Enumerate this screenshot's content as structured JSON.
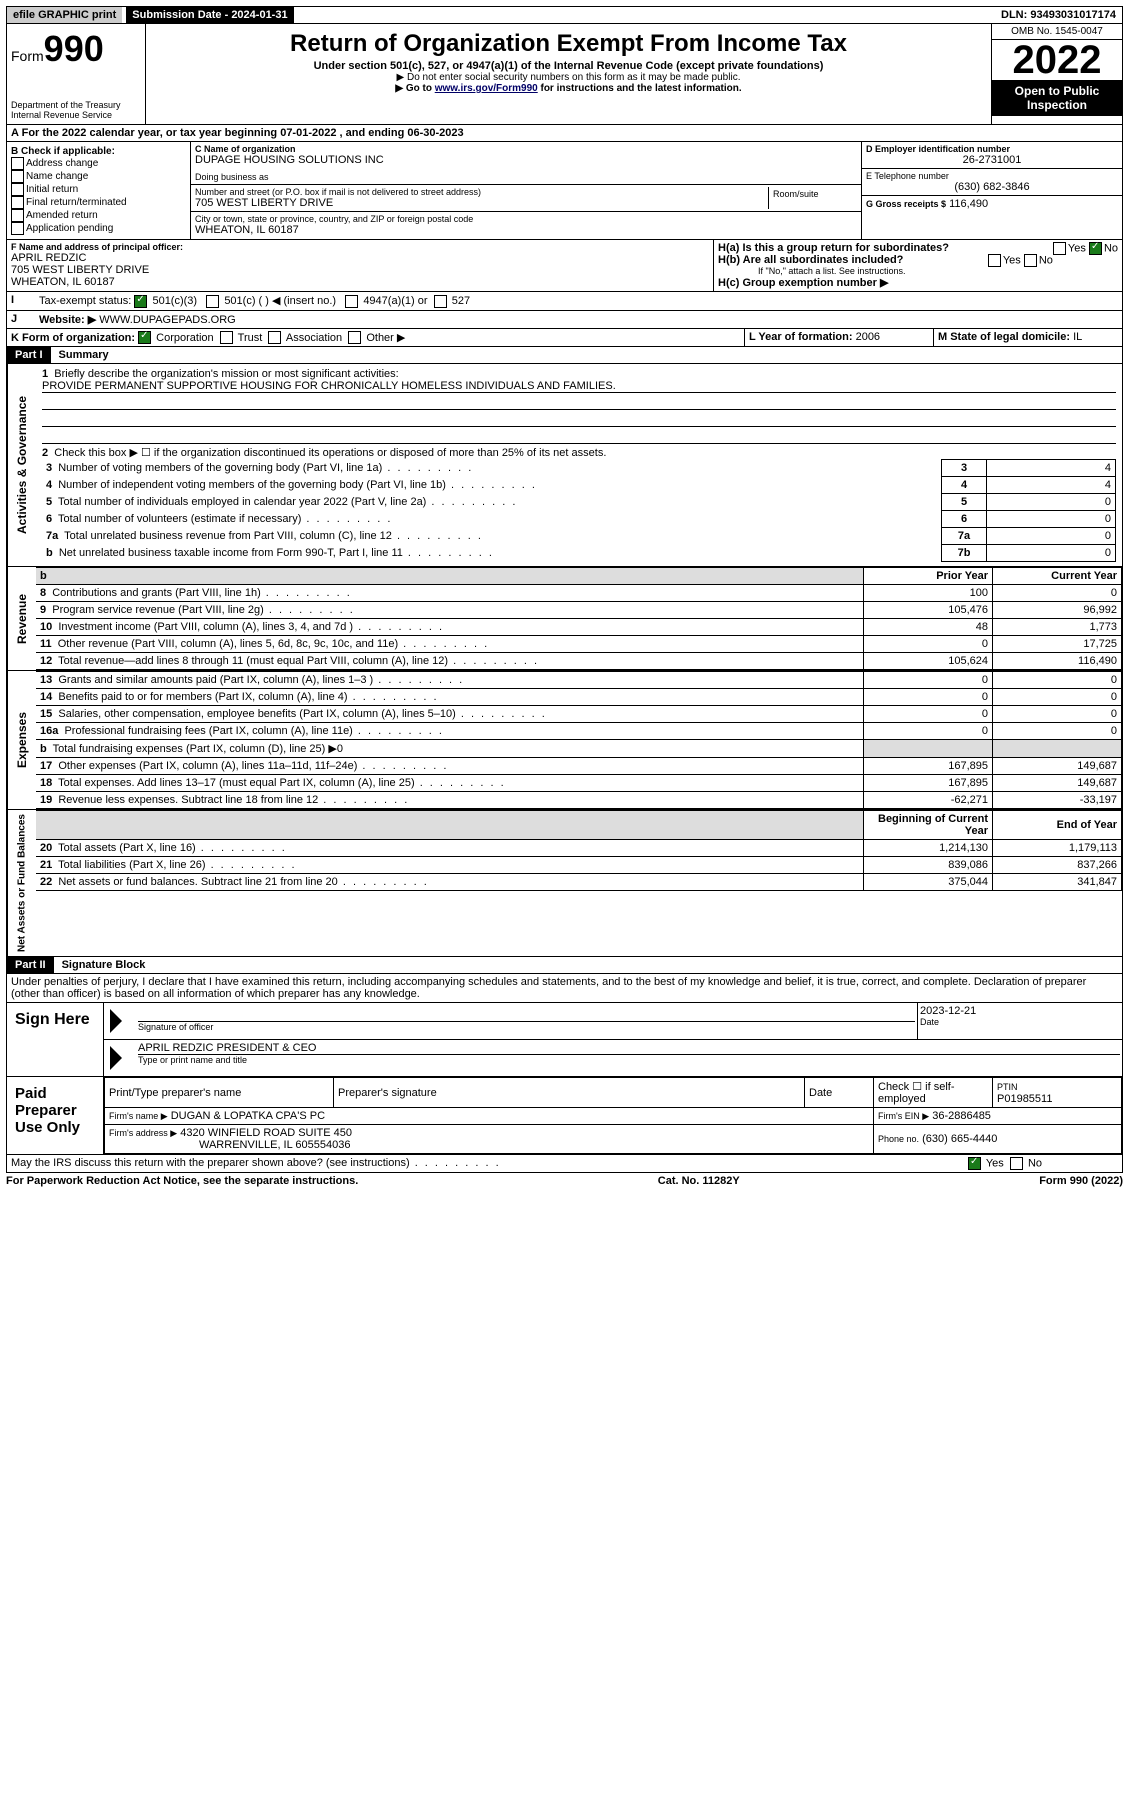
{
  "topbar": {
    "efile": "efile GRAPHIC print",
    "submission_label": "Submission Date - 2024-01-31",
    "dln_label": "DLN: 93493031017174"
  },
  "header": {
    "form_word": "Form",
    "form_num": "990",
    "dept": "Department of the Treasury",
    "irs": "Internal Revenue Service",
    "title": "Return of Organization Exempt From Income Tax",
    "sub": "Under section 501(c), 527, or 4947(a)(1) of the Internal Revenue Code (except private foundations)",
    "note1": "▶ Do not enter social security numbers on this form as it may be made public.",
    "note2_pre": "▶ Go to ",
    "note2_link": "www.irs.gov/Form990",
    "note2_post": " for instructions and the latest information.",
    "omb": "OMB No. 1545-0047",
    "year": "2022",
    "open": "Open to Public Inspection"
  },
  "lineA": "For the 2022 calendar year, or tax year beginning 07-01-2022   , and ending 06-30-2023",
  "boxB": {
    "label": "B Check if applicable:",
    "items": [
      "Address change",
      "Name change",
      "Initial return",
      "Final return/terminated",
      "Amended return",
      "Application pending"
    ]
  },
  "boxC": {
    "label": "C Name of organization",
    "name": "DUPAGE HOUSING SOLUTIONS INC",
    "dba": "Doing business as",
    "street_lbl": "Number and street (or P.O. box if mail is not delivered to street address)",
    "room_lbl": "Room/suite",
    "street": "705 WEST LIBERTY DRIVE",
    "city_lbl": "City or town, state or province, country, and ZIP or foreign postal code",
    "city": "WHEATON, IL  60187"
  },
  "boxD": {
    "label": "D Employer identification number",
    "value": "26-2731001"
  },
  "boxE": {
    "label": "E Telephone number",
    "value": "(630) 682-3846"
  },
  "boxG": {
    "label": "G Gross receipts $",
    "value": "116,490"
  },
  "boxF": {
    "label": "F  Name and address of principal officer:",
    "name": "APRIL REDZIC",
    "street": "705 WEST LIBERTY DRIVE",
    "city": "WHEATON, IL  60187"
  },
  "boxH": {
    "a": "H(a)  Is this a group return for subordinates?",
    "b": "H(b)  Are all subordinates included?",
    "b_note": "If \"No,\" attach a list. See instructions.",
    "c": "H(c)  Group exemption number ▶",
    "yes": "Yes",
    "no": "No"
  },
  "boxI": {
    "label": "Tax-exempt status:",
    "c3": "501(c)(3)",
    "c": "501(c) (  ) ◀ (insert no.)",
    "a1": "4947(a)(1) or",
    "s527": "527"
  },
  "boxJ": {
    "label": "Website: ▶",
    "value": "WWW.DUPAGEPADS.ORG"
  },
  "boxK": {
    "label": "K Form of organization:",
    "corp": "Corporation",
    "trust": "Trust",
    "assoc": "Association",
    "other": "Other ▶"
  },
  "boxL": {
    "label": "L Year of formation:",
    "value": "2006"
  },
  "boxM": {
    "label": "M State of legal domicile:",
    "value": "IL"
  },
  "part1": {
    "header": "Part I",
    "title": "Summary"
  },
  "summary": {
    "line1_lbl": "Briefly describe the organization's mission or most significant activities:",
    "line1_val": "PROVIDE PERMANENT SUPPORTIVE HOUSING FOR CHRONICALLY HOMELESS INDIVIDUALS AND FAMILIES.",
    "line2": "Check this box ▶ ☐  if the organization discontinued its operations or disposed of more than 25% of its net assets.",
    "rows_ag": [
      {
        "n": "3",
        "label": "Number of voting members of the governing body (Part VI, line 1a)",
        "box": "3",
        "val": "4"
      },
      {
        "n": "4",
        "label": "Number of independent voting members of the governing body (Part VI, line 1b)",
        "box": "4",
        "val": "4"
      },
      {
        "n": "5",
        "label": "Total number of individuals employed in calendar year 2022 (Part V, line 2a)",
        "box": "5",
        "val": "0"
      },
      {
        "n": "6",
        "label": "Total number of volunteers (estimate if necessary)",
        "box": "6",
        "val": "0"
      },
      {
        "n": "7a",
        "label": "Total unrelated business revenue from Part VIII, column (C), line 12",
        "box": "7a",
        "val": "0"
      },
      {
        "n": "b",
        "label": "Net unrelated business taxable income from Form 990-T, Part I, line 11",
        "box": "7b",
        "val": "0"
      }
    ],
    "col_prior": "Prior Year",
    "col_current": "Current Year",
    "rev": [
      {
        "n": "8",
        "label": "Contributions and grants (Part VIII, line 1h)",
        "p": "100",
        "c": "0"
      },
      {
        "n": "9",
        "label": "Program service revenue (Part VIII, line 2g)",
        "p": "105,476",
        "c": "96,992"
      },
      {
        "n": "10",
        "label": "Investment income (Part VIII, column (A), lines 3, 4, and 7d )",
        "p": "48",
        "c": "1,773"
      },
      {
        "n": "11",
        "label": "Other revenue (Part VIII, column (A), lines 5, 6d, 8c, 9c, 10c, and 11e)",
        "p": "0",
        "c": "17,725"
      },
      {
        "n": "12",
        "label": "Total revenue—add lines 8 through 11 (must equal Part VIII, column (A), line 12)",
        "p": "105,624",
        "c": "116,490"
      }
    ],
    "exp": [
      {
        "n": "13",
        "label": "Grants and similar amounts paid (Part IX, column (A), lines 1–3 )",
        "p": "0",
        "c": "0"
      },
      {
        "n": "14",
        "label": "Benefits paid to or for members (Part IX, column (A), line 4)",
        "p": "0",
        "c": "0"
      },
      {
        "n": "15",
        "label": "Salaries, other compensation, employee benefits (Part IX, column (A), lines 5–10)",
        "p": "0",
        "c": "0"
      },
      {
        "n": "16a",
        "label": "Professional fundraising fees (Part IX, column (A), line 11e)",
        "p": "0",
        "c": "0"
      },
      {
        "n": "b",
        "label": "Total fundraising expenses (Part IX, column (D), line 25) ▶0",
        "p": "",
        "c": "",
        "shade": true
      },
      {
        "n": "17",
        "label": "Other expenses (Part IX, column (A), lines 11a–11d, 11f–24e)",
        "p": "167,895",
        "c": "149,687"
      },
      {
        "n": "18",
        "label": "Total expenses. Add lines 13–17 (must equal Part IX, column (A), line 25)",
        "p": "167,895",
        "c": "149,687"
      },
      {
        "n": "19",
        "label": "Revenue less expenses. Subtract line 18 from line 12",
        "p": "-62,271",
        "c": "-33,197"
      }
    ],
    "col_begin": "Beginning of Current Year",
    "col_end": "End of Year",
    "net": [
      {
        "n": "20",
        "label": "Total assets (Part X, line 16)",
        "p": "1,214,130",
        "c": "1,179,113"
      },
      {
        "n": "21",
        "label": "Total liabilities (Part X, line 26)",
        "p": "839,086",
        "c": "837,266"
      },
      {
        "n": "22",
        "label": "Net assets or fund balances. Subtract line 21 from line 20",
        "p": "375,044",
        "c": "341,847"
      }
    ]
  },
  "vlabels": {
    "ag": "Activities & Governance",
    "rev": "Revenue",
    "exp": "Expenses",
    "net": "Net Assets or Fund Balances"
  },
  "part2": {
    "header": "Part II",
    "title": "Signature Block"
  },
  "penalties": "Under penalties of perjury, I declare that I have examined this return, including accompanying schedules and statements, and to the best of my knowledge and belief, it is true, correct, and complete. Declaration of preparer (other than officer) is based on all information of which preparer has any knowledge.",
  "sign": {
    "here": "Sign Here",
    "sig_officer": "Signature of officer",
    "date_lbl": "Date",
    "date": "2023-12-21",
    "name": "APRIL REDZIC  PRESIDENT & CEO",
    "name_lbl": "Type or print name and title"
  },
  "preparer": {
    "label": "Paid Preparer Use Only",
    "col1": "Print/Type preparer's name",
    "col2": "Preparer's signature",
    "col3": "Date",
    "col4": "Check ☐ if self-employed",
    "ptin_lbl": "PTIN",
    "ptin": "P01985511",
    "firm_name_lbl": "Firm's name   ▶",
    "firm_name": "DUGAN & LOPATKA CPA'S PC",
    "firm_ein_lbl": "Firm's EIN ▶",
    "firm_ein": "36-2886485",
    "firm_addr_lbl": "Firm's address ▶",
    "firm_addr1": "4320 WINFIELD ROAD SUITE 450",
    "firm_addr2": "WARRENVILLE, IL  605554036",
    "phone_lbl": "Phone no.",
    "phone": "(630) 665-4440"
  },
  "discuss": "May the IRS discuss this return with the preparer shown above? (see instructions)",
  "footer": {
    "left": "For Paperwork Reduction Act Notice, see the separate instructions.",
    "mid": "Cat. No. 11282Y",
    "right": "Form 990 (2022)"
  }
}
